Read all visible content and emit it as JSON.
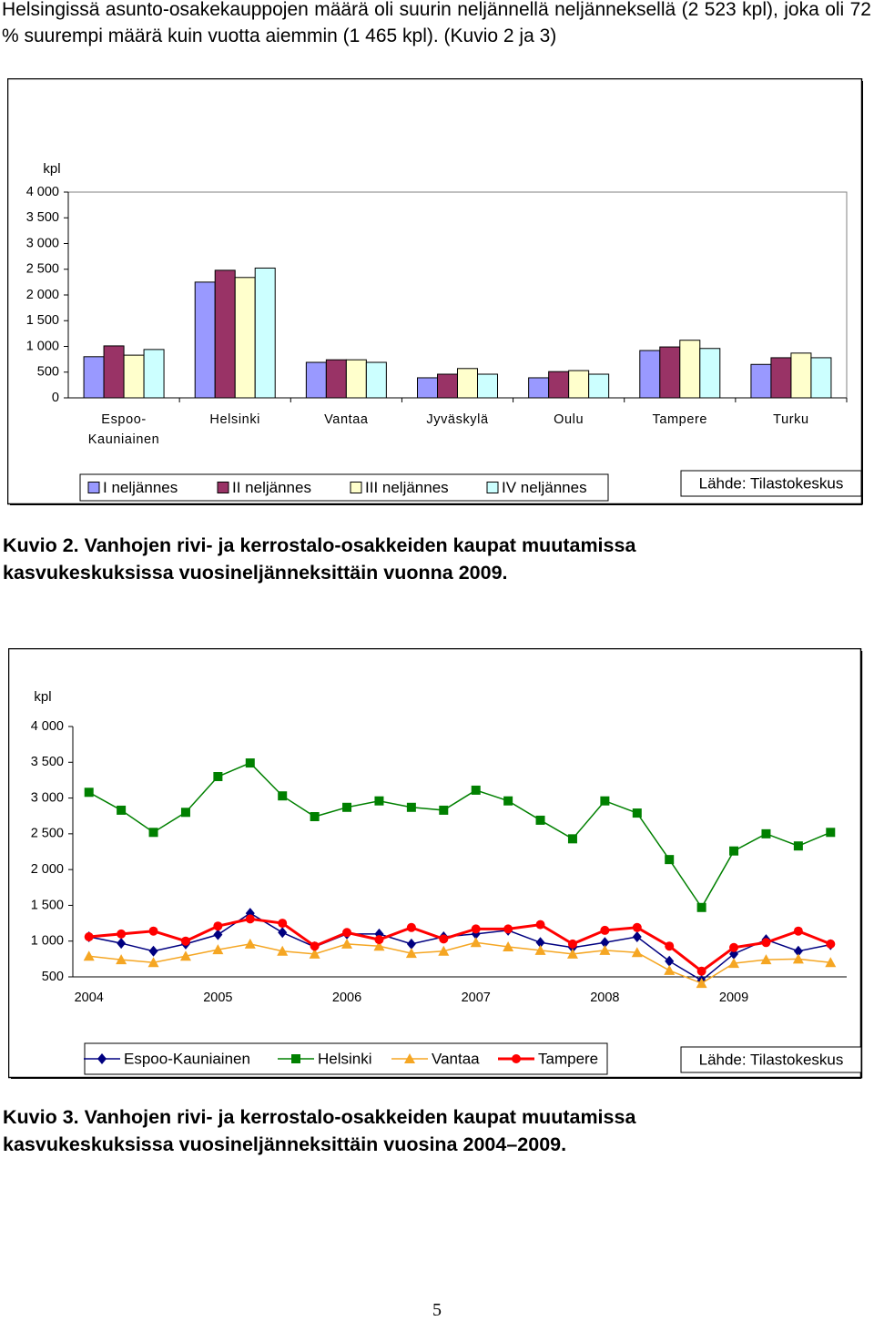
{
  "intro": "Helsingissä asunto-osakekauppojen määrä oli suurin neljännellä neljänneksellä (2 523 kpl), joka oli 72 % suurempi määrä kuin vuotta aiemmin (1 465 kpl). (Kuvio 2 ja 3)",
  "chart_data": [
    {
      "type": "bar",
      "y_label": "kpl",
      "categories": [
        "Espoo-Kauniainen",
        "Helsinki",
        "Vantaa",
        "Jyväskylä",
        "Oulu",
        "Tampere",
        "Turku"
      ],
      "series": [
        {
          "name": "I neljännes",
          "color": "#9999ff",
          "values": [
            800,
            2250,
            690,
            390,
            390,
            920,
            650
          ]
        },
        {
          "name": "II neljännes",
          "color": "#993366",
          "values": [
            1010,
            2480,
            740,
            460,
            510,
            990,
            780
          ]
        },
        {
          "name": "III neljännes",
          "color": "#ffffcc",
          "values": [
            830,
            2340,
            740,
            570,
            530,
            1120,
            870
          ]
        },
        {
          "name": "IV neljännes",
          "color": "#ccffff",
          "values": [
            940,
            2523,
            690,
            460,
            460,
            960,
            780
          ]
        }
      ],
      "ylim": [
        0,
        4000
      ],
      "yticks": [
        0,
        500,
        {
          "value": 1000,
          "label": "1 000"
        },
        {
          "value": 1500,
          "label": "1 500"
        },
        {
          "value": 2000,
          "label": "2 000"
        },
        {
          "value": 2500,
          "label": "2 500"
        },
        {
          "value": 3000,
          "label": "3 000"
        },
        {
          "value": 3500,
          "label": "3 500"
        },
        {
          "value": 4000,
          "label": "4 000"
        }
      ],
      "grid": false,
      "source": "Lähde: Tilastokeskus",
      "caption": "Kuvio 2. Vanhojen rivi- ja kerrostalo-osakkeiden kaupat muutamissa kasvukeskuksissa vuosineljänneksittäin vuonna 2009."
    },
    {
      "type": "line",
      "y_label": "kpl",
      "categories": [
        "2004",
        null,
        null,
        null,
        "2005",
        null,
        null,
        null,
        "2006",
        null,
        null,
        null,
        "2007",
        null,
        null,
        null,
        "2008",
        null,
        null,
        null,
        "2009",
        null,
        null,
        null
      ],
      "series": [
        {
          "name": "Espoo-Kauniainen",
          "color": "#000080",
          "marker": "diamond",
          "values": [
            1060,
            970,
            860,
            960,
            1090,
            1390,
            1120,
            920,
            1100,
            1100,
            960,
            1060,
            1100,
            1150,
            980,
            910,
            980,
            1060,
            720,
            450,
            820,
            1020,
            860,
            950
          ]
        },
        {
          "name": "Helsinki",
          "color": "#008000",
          "marker": "square",
          "values": [
            3080,
            2830,
            2520,
            2800,
            3300,
            3490,
            3030,
            2740,
            2870,
            2960,
            2870,
            2830,
            3110,
            2960,
            2690,
            2430,
            2960,
            2790,
            2140,
            1470,
            2260,
            2500,
            2330,
            2520
          ]
        },
        {
          "name": "Vantaa",
          "color": "#f5a623",
          "marker": "triangle",
          "values": [
            790,
            740,
            700,
            790,
            880,
            960,
            860,
            820,
            960,
            930,
            830,
            860,
            980,
            920,
            870,
            820,
            870,
            840,
            590,
            410,
            690,
            740,
            750,
            700
          ]
        },
        {
          "name": "Tampere",
          "color": "#ff0000",
          "marker": "circle",
          "values": [
            1060,
            1100,
            1140,
            1000,
            1210,
            1310,
            1250,
            930,
            1120,
            1020,
            1190,
            1030,
            1170,
            1170,
            1230,
            960,
            1150,
            1190,
            930,
            580,
            910,
            980,
            1140,
            960
          ]
        }
      ],
      "ylim": [
        500,
        4000
      ],
      "yticks": [
        500,
        {
          "value": 1000,
          "label": "1 000"
        },
        {
          "value": 1500,
          "label": "1 500"
        },
        {
          "value": 2000,
          "label": "2 000"
        },
        {
          "value": 2500,
          "label": "2 500"
        },
        {
          "value": 3000,
          "label": "3 000"
        },
        {
          "value": 3500,
          "label": "3 500"
        },
        {
          "value": 4000,
          "label": "4 000"
        }
      ],
      "grid": false,
      "source": "Lähde: Tilastokeskus",
      "caption": "Kuvio 3. Vanhojen rivi- ja kerrostalo-osakkeiden kaupat muutamissa kasvukeskuksissa vuosineljänneksittäin vuosina 2004–2009."
    }
  ],
  "page_number": 5
}
